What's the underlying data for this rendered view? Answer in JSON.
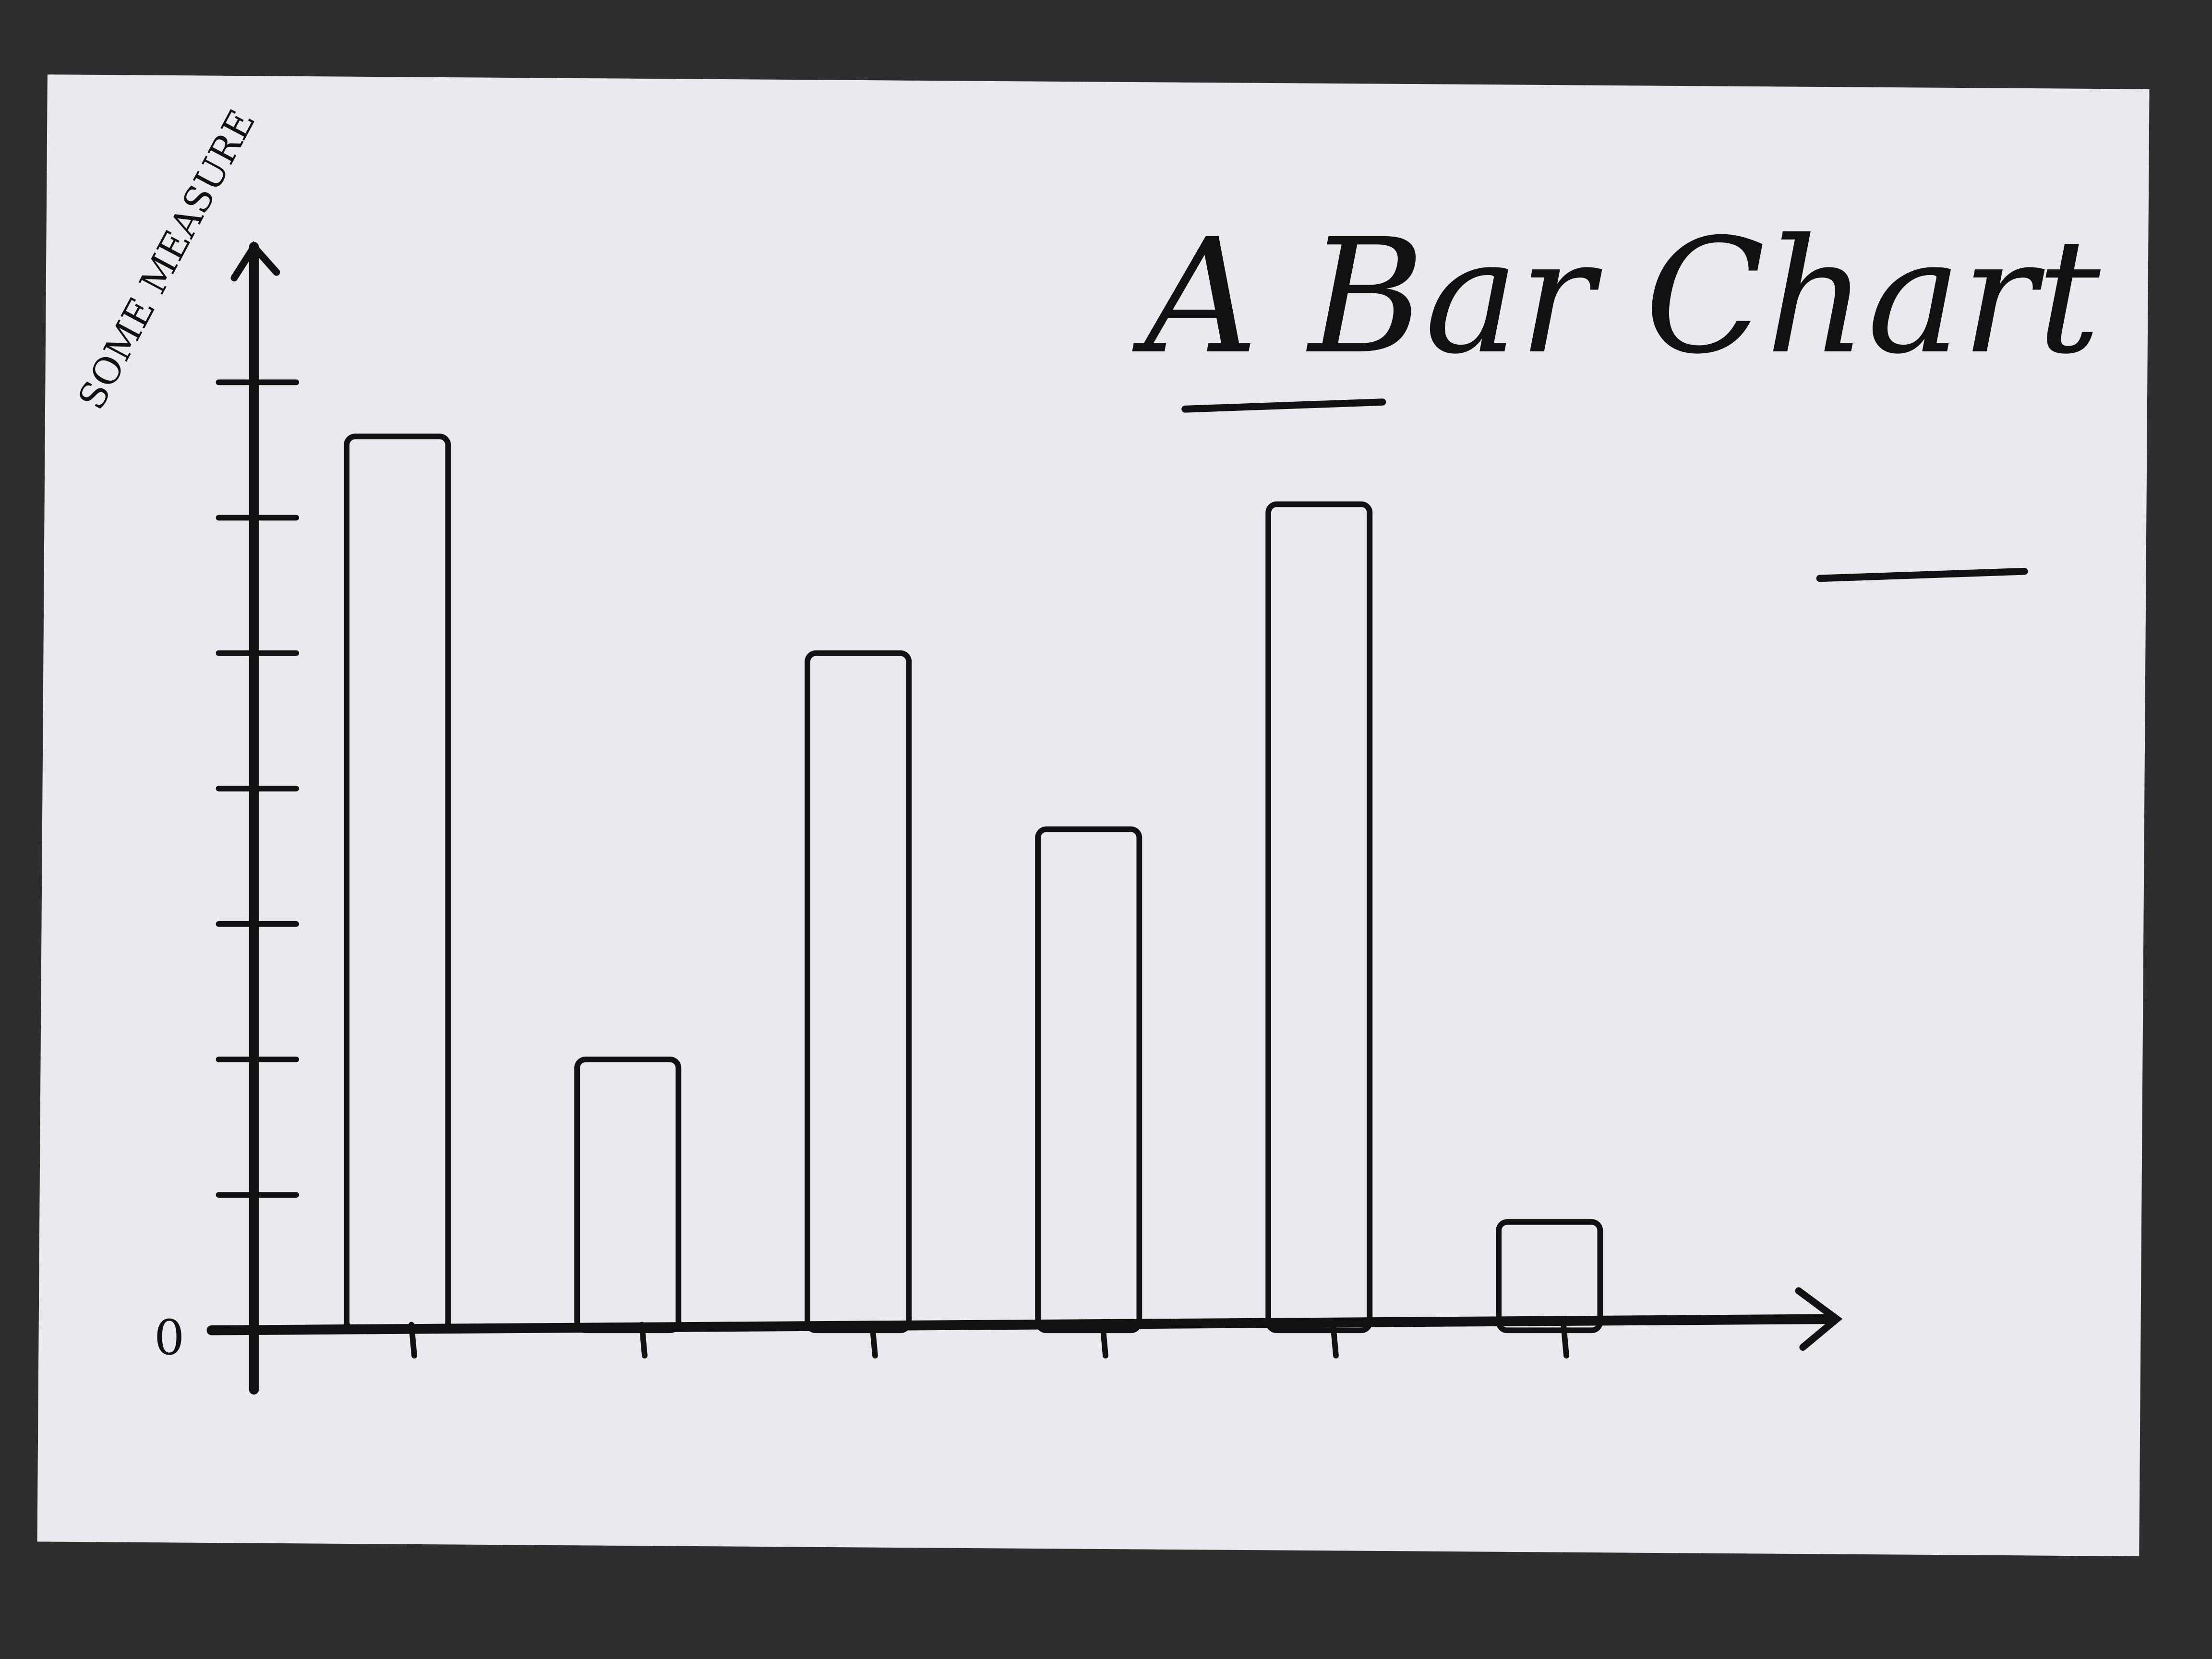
{
  "chart_data": {
    "type": "bar",
    "title": "A Bar Chart",
    "y_label": "SOME MEASURE",
    "categories": [
      null,
      null,
      null,
      null,
      null,
      null
    ],
    "values": [
      6.6,
      2,
      5,
      3.7,
      6.1,
      0.8
    ],
    "color": "#111111",
    "ylim": [
      0,
      8
    ],
    "yticks": [
      0,
      {
        "value": 1,
        "label": null
      },
      {
        "value": 2,
        "label": null
      },
      {
        "value": 3,
        "label": null
      },
      {
        "value": 4,
        "label": null
      },
      {
        "value": 5,
        "label": null
      },
      {
        "value": 6,
        "label": null
      },
      {
        "value": 7,
        "label": null
      }
    ]
  }
}
